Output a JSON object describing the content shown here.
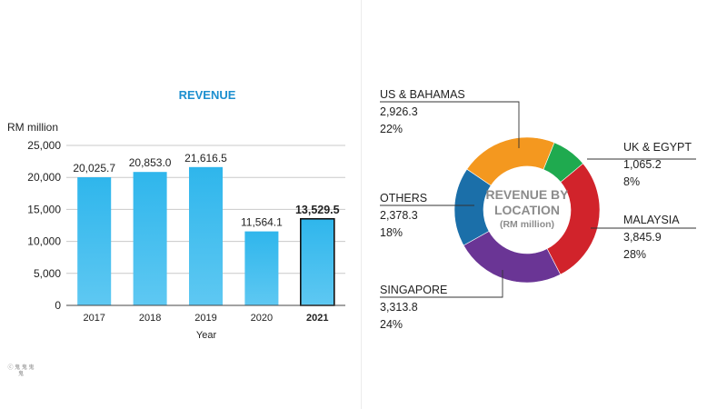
{
  "chart_data": [
    {
      "type": "bar",
      "title": "REVENUE",
      "ylabel": "RM million",
      "xlabel": "Year",
      "categories": [
        "2017",
        "2018",
        "2019",
        "2020",
        "2021"
      ],
      "values": [
        20025.7,
        20853.0,
        21616.5,
        11564.1,
        13529.5
      ],
      "value_labels": [
        "20,025.7",
        "20,853.0",
        "21,616.5",
        "11,564.1",
        "13,529.5"
      ],
      "highlight_category": "2021",
      "yticks": [
        0,
        5000,
        10000,
        15000,
        20000,
        25000
      ],
      "ytick_labels": [
        "0",
        "5,000",
        "10,000",
        "15,000",
        "20,000",
        "25,000"
      ],
      "ylim": [
        0,
        25000
      ],
      "grid": true,
      "bar_color": "#5ec8f2"
    },
    {
      "type": "pie",
      "donut": true,
      "title": "REVENUE BY LOCATION",
      "subtitle": "(RM million)",
      "center_lines": [
        "REVENUE BY",
        "LOCATION"
      ],
      "slices": [
        {
          "label": "UK & EGYPT",
          "value": 1065.2,
          "value_label": "1,065.2",
          "percent": "8%",
          "color": "#1faa4f"
        },
        {
          "label": "MALAYSIA",
          "value": 3845.9,
          "value_label": "3,845.9",
          "percent": "28%",
          "color": "#d1232b"
        },
        {
          "label": "SINGAPORE",
          "value": 3313.8,
          "value_label": "3,313.8",
          "percent": "24%",
          "color": "#6a3595"
        },
        {
          "label": "OTHERS",
          "value": 2378.3,
          "value_label": "2,378.3",
          "percent": "18%",
          "color": "#1b6fa9"
        },
        {
          "label": "US & BAHAMAS",
          "value": 2926.3,
          "value_label": "2,926.3",
          "percent": "22%",
          "color": "#f4981f"
        }
      ]
    }
  ],
  "watermark": "ⓒ 鬼 鬼 鬼 鬼"
}
